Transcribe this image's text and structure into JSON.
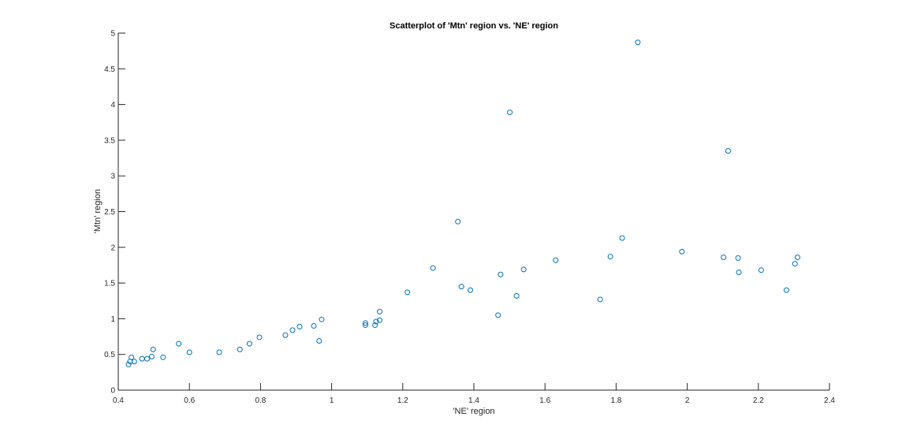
{
  "chart_data": {
    "type": "scatter",
    "title": "Scatterplot of 'Mtn' region vs. 'NE' region",
    "xlabel": "'NE' region",
    "ylabel": "'Mtn' region",
    "xlim": [
      0.4,
      2.4
    ],
    "ylim": [
      0,
      5
    ],
    "xticks": [
      0.4,
      0.6,
      0.8,
      1,
      1.2,
      1.4,
      1.6,
      1.8,
      2,
      2.2,
      2.4
    ],
    "xtick_labels": [
      "0.4",
      "0.6",
      "0.8",
      "1",
      "1.2",
      "1.4",
      "1.6",
      "1.8",
      "2",
      "2.2",
      "2.4"
    ],
    "yticks": [
      0,
      0.5,
      1,
      1.5,
      2,
      2.5,
      3,
      3.5,
      4,
      4.5,
      5
    ],
    "ytick_labels": [
      "0",
      "0.5",
      "1",
      "1.5",
      "2",
      "2.5",
      "3",
      "3.5",
      "4",
      "4.5",
      "5"
    ],
    "grid": false,
    "marker_color": "#0072BD",
    "points": [
      {
        "x": 0.429,
        "y": 0.36
      },
      {
        "x": 0.433,
        "y": 0.4
      },
      {
        "x": 0.437,
        "y": 0.46
      },
      {
        "x": 0.445,
        "y": 0.4
      },
      {
        "x": 0.467,
        "y": 0.44
      },
      {
        "x": 0.481,
        "y": 0.44
      },
      {
        "x": 0.494,
        "y": 0.47
      },
      {
        "x": 0.498,
        "y": 0.57
      },
      {
        "x": 0.526,
        "y": 0.46
      },
      {
        "x": 0.57,
        "y": 0.65
      },
      {
        "x": 0.6,
        "y": 0.53
      },
      {
        "x": 0.684,
        "y": 0.53
      },
      {
        "x": 0.742,
        "y": 0.57
      },
      {
        "x": 0.769,
        "y": 0.65
      },
      {
        "x": 0.797,
        "y": 0.74
      },
      {
        "x": 0.87,
        "y": 0.77
      },
      {
        "x": 0.89,
        "y": 0.84
      },
      {
        "x": 0.91,
        "y": 0.89
      },
      {
        "x": 0.95,
        "y": 0.9
      },
      {
        "x": 0.965,
        "y": 0.69
      },
      {
        "x": 0.972,
        "y": 0.99
      },
      {
        "x": 1.095,
        "y": 0.91
      },
      {
        "x": 1.095,
        "y": 0.94
      },
      {
        "x": 1.122,
        "y": 0.91
      },
      {
        "x": 1.125,
        "y": 0.96
      },
      {
        "x": 1.135,
        "y": 0.98
      },
      {
        "x": 1.135,
        "y": 1.1
      },
      {
        "x": 1.213,
        "y": 1.37
      },
      {
        "x": 1.285,
        "y": 1.71
      },
      {
        "x": 1.355,
        "y": 2.36
      },
      {
        "x": 1.365,
        "y": 1.45
      },
      {
        "x": 1.39,
        "y": 1.4
      },
      {
        "x": 1.468,
        "y": 1.05
      },
      {
        "x": 1.475,
        "y": 1.62
      },
      {
        "x": 1.501,
        "y": 3.89
      },
      {
        "x": 1.52,
        "y": 1.32
      },
      {
        "x": 1.54,
        "y": 1.69
      },
      {
        "x": 1.63,
        "y": 1.82
      },
      {
        "x": 1.755,
        "y": 1.27
      },
      {
        "x": 1.784,
        "y": 1.87
      },
      {
        "x": 1.817,
        "y": 2.13
      },
      {
        "x": 1.861,
        "y": 4.87
      },
      {
        "x": 1.985,
        "y": 1.94
      },
      {
        "x": 2.102,
        "y": 1.86
      },
      {
        "x": 2.115,
        "y": 3.35
      },
      {
        "x": 2.143,
        "y": 1.85
      },
      {
        "x": 2.145,
        "y": 1.65
      },
      {
        "x": 2.208,
        "y": 1.68
      },
      {
        "x": 2.279,
        "y": 1.4
      },
      {
        "x": 2.303,
        "y": 1.77
      },
      {
        "x": 2.31,
        "y": 1.86
      }
    ]
  }
}
